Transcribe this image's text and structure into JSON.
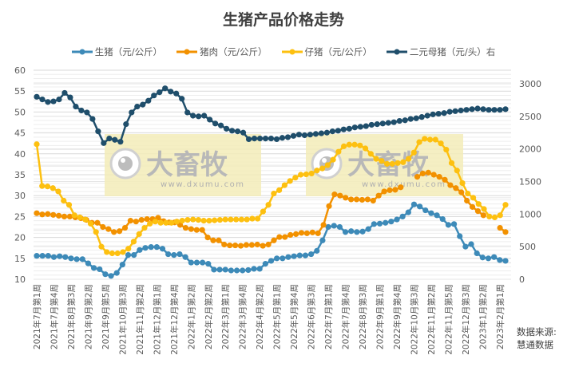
{
  "title": "生猪产品价格走势",
  "source": {
    "line1": "数据来源:",
    "line2": "慧通数据"
  },
  "legend": [
    {
      "label": "生猪（元/公斤）",
      "color": "#3D8AB8"
    },
    {
      "label": "猪肉（元/公斤）",
      "color": "#F29100"
    },
    {
      "label": "仔猪（元/公斤）",
      "color": "#FDC010"
    },
    {
      "label": "二元母猪（元/头）右",
      "color": "#1F4E6B"
    }
  ],
  "watermark": {
    "brand": "大畜牧",
    "url": "www.dxumu.com"
  },
  "chart_data": {
    "type": "line",
    "title": "生猪产品价格走势",
    "xlabel": "",
    "ylabel": "",
    "left_axis": {
      "min": 10,
      "max": 60,
      "step": 5,
      "ticks": [
        10,
        15,
        20,
        25,
        30,
        35,
        40,
        45,
        50,
        55,
        60
      ]
    },
    "right_axis": {
      "min": 0,
      "max": 3000,
      "step": 500,
      "ticks": [
        0,
        500,
        1000,
        1500,
        2000,
        2500,
        3000
      ]
    },
    "grid": true,
    "legend_position": "top",
    "x_tick_labels": [
      "2021年7月第1周",
      "2021年7月第4周",
      "2021年8月第3周",
      "2021年9月第2周",
      "2021年9月第5周",
      "2021年10月第3周",
      "2021年11月第2周",
      "2021年12月第1周",
      "2021年12月第4周",
      "2022年1月第2周",
      "2022年2月第2周",
      "2022年3月第1周",
      "2022年3月第4周",
      "2022年4月第2周",
      "2022年5月第1周",
      "2022年5月第4周",
      "2022年6月第3周",
      "2022年7月第1周",
      "2022年7月第4周",
      "2022年8月第3周",
      "2022年9月第1周",
      "2022年9月第4周",
      "2022年10月第3周",
      "2022年11月第2周",
      "2022年11月第5周",
      "2022年12月第3周",
      "2023年1月第2周",
      "2023年2月第1周"
    ],
    "series": [
      {
        "name": "生猪（元/公斤）",
        "axis": "left",
        "color": "#3D8AB8",
        "values": [
          15.6,
          15.6,
          15.6,
          15.3,
          15.5,
          15.3,
          15.0,
          14.8,
          14.8,
          13.8,
          12.7,
          12.4,
          11.2,
          10.8,
          11.5,
          13.5,
          15.8,
          15.8,
          17.0,
          17.5,
          17.7,
          17.7,
          17.3,
          16.0,
          15.8,
          16.0,
          15.3,
          14.0,
          14.0,
          14.0,
          13.7,
          12.3,
          12.3,
          12.3,
          12.1,
          12.1,
          12.1,
          12.2,
          12.5,
          12.5,
          13.7,
          14.4,
          15.0,
          15.0,
          15.3,
          15.5,
          15.7,
          15.7,
          16.0,
          16.8,
          19.3,
          22.5,
          22.8,
          22.5,
          21.3,
          21.5,
          21.3,
          21.4,
          22.0,
          23.2,
          23.3,
          23.5,
          23.8,
          24.3,
          25.0,
          26.0,
          27.9,
          27.4,
          26.5,
          25.8,
          25.3,
          24.4,
          23.0,
          23.2,
          20.3,
          17.8,
          18.4,
          16.2,
          15.2,
          15.0,
          15.3,
          14.6,
          14.4
        ]
      },
      {
        "name": "猪肉（元/公斤）",
        "axis": "left",
        "color": "#F29100",
        "values": [
          25.8,
          25.5,
          25.6,
          25.4,
          25.2,
          25.0,
          25.0,
          24.8,
          24.6,
          24.2,
          23.5,
          23.5,
          22.5,
          22.0,
          21.3,
          21.5,
          22.3,
          24.0,
          23.8,
          24.2,
          24.4,
          24.4,
          24.7,
          23.9,
          23.6,
          23.6,
          23.0,
          22.3,
          22.0,
          21.8,
          21.8,
          20.0,
          19.3,
          19.3,
          18.3,
          18.1,
          18.1,
          18.0,
          18.2,
          18.2,
          18.3,
          18.0,
          18.3,
          19.3,
          20.1,
          20.1,
          20.6,
          20.8,
          21.1,
          21.0,
          21.2,
          21.0,
          23.0,
          27.5,
          30.3,
          30.0,
          29.5,
          29.1,
          29.1,
          29.0,
          29.1,
          28.8,
          30.0,
          31.0,
          31.3,
          31.4,
          32.0,
          null,
          null,
          34.5,
          35.3,
          35.5,
          35.0,
          34.5,
          33.8,
          32.5,
          31.8,
          30.8,
          28.8,
          27.3,
          26.3,
          25.3,
          null,
          null,
          22.3,
          21.3
        ]
      },
      {
        "name": "仔猪（元/公斤）",
        "axis": "left",
        "color": "#FDC010",
        "values": [
          42.3,
          32.3,
          32.2,
          31.8,
          31.0,
          28.8,
          27.8,
          25.3,
          24.8,
          24.3,
          23.3,
          21.3,
          17.8,
          16.5,
          16.2,
          16.2,
          16.5,
          17.3,
          19.0,
          20.8,
          22.3,
          23.3,
          23.8,
          23.5,
          23.5,
          23.5,
          23.8,
          24.0,
          24.2,
          24.3,
          24.2,
          24.0,
          24.0,
          24.1,
          24.2,
          24.3,
          24.3,
          24.3,
          24.3,
          24.3,
          24.5,
          24.5,
          26.2,
          27.8,
          30.5,
          31.3,
          32.5,
          33.5,
          34.3,
          35.0,
          35.1,
          35.3,
          36.0,
          36.5,
          37.3,
          38.6,
          40.5,
          41.8,
          42.2,
          42.2,
          42.0,
          41.3,
          40.0,
          38.8,
          38.3,
          37.6,
          37.6,
          37.8,
          38.0,
          38.8,
          40.3,
          42.8,
          43.6,
          43.4,
          43.4,
          42.5,
          41.0,
          37.8,
          36.0,
          33.0,
          30.5,
          29.5,
          28.0,
          26.8,
          25.0,
          24.8,
          25.3,
          27.8
        ]
      },
      {
        "name": "二元母猪（元/头）右",
        "axis": "right",
        "color": "#1F4E6B",
        "values": [
          2800,
          2760,
          2720,
          2730,
          2760,
          2860,
          2790,
          2650,
          2590,
          2560,
          2460,
          2270,
          2090,
          2160,
          2140,
          2110,
          2380,
          2560,
          2650,
          2680,
          2740,
          2820,
          2870,
          2930,
          2880,
          2850,
          2770,
          2560,
          2510,
          2500,
          2510,
          2450,
          2390,
          2360,
          2310,
          2280,
          2270,
          2250,
          2150,
          2160,
          2160,
          2160,
          2160,
          2150,
          2170,
          2180,
          2200,
          2220,
          2210,
          2220,
          2230,
          2240,
          2250,
          2270,
          2280,
          2300,
          2310,
          2330,
          2340,
          2350,
          2370,
          2380,
          2390,
          2400,
          2410,
          2430,
          2440,
          2460,
          2470,
          2490,
          2510,
          2530,
          2540,
          2550,
          2570,
          2580,
          2590,
          2600,
          2610,
          2620,
          2610,
          2600,
          2600,
          2600,
          2610
        ]
      }
    ]
  }
}
